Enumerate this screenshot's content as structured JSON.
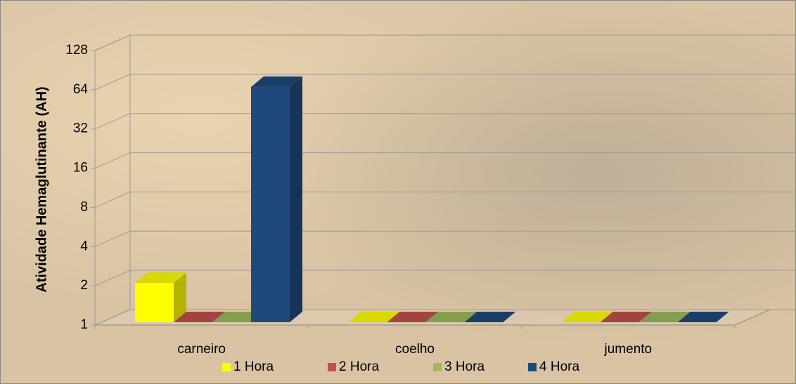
{
  "chart_data": {
    "type": "bar3d",
    "ylabel": "Atividade Hemaglutinante (AH)",
    "categories": [
      "carneiro",
      "coelho",
      "jumento"
    ],
    "series": [
      {
        "name": "1 Hora",
        "color": "#ffff00",
        "values": [
          2,
          1,
          1
        ]
      },
      {
        "name": "2 Hora",
        "color": "#c0504d",
        "values": [
          1,
          1,
          1
        ]
      },
      {
        "name": "3 Hora",
        "color": "#9bbb59",
        "values": [
          1,
          1,
          1
        ]
      },
      {
        "name": "4 Hora",
        "color": "#1f497d",
        "values": [
          64,
          1,
          1
        ]
      }
    ],
    "ylim": [
      1,
      128
    ],
    "yticks": [
      1,
      2,
      4,
      8,
      16,
      32,
      64,
      128
    ],
    "log_base": 2,
    "grid": true,
    "legend": "bottom"
  }
}
